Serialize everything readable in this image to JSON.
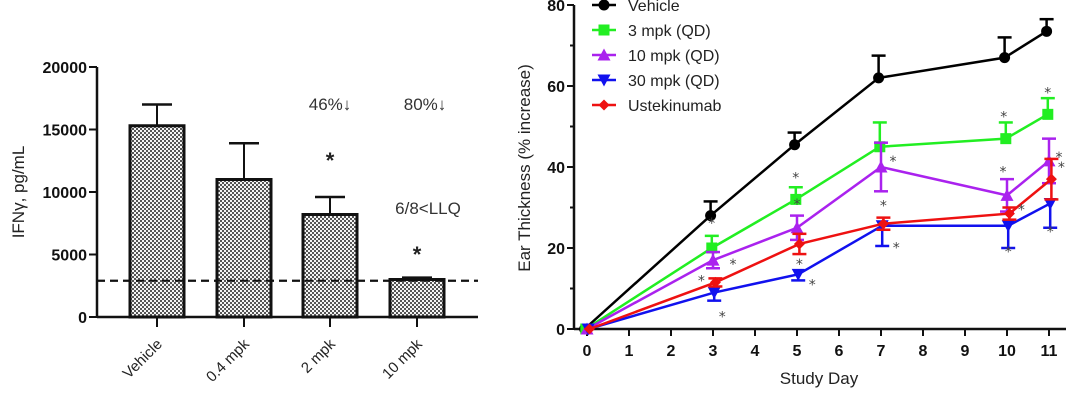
{
  "chart_data": [
    {
      "type": "bar",
      "title": "",
      "xlabel": "",
      "ylabel": "IFNγ, pg/mL",
      "ylim": [
        0,
        20000
      ],
      "yticks": [
        "0",
        "5000",
        "10000",
        "15000",
        "20000"
      ],
      "categories": [
        "Vehicle",
        "0.4 mpk",
        "2 mpk",
        "10 mpk"
      ],
      "values": [
        15300,
        11000,
        8200,
        3000
      ],
      "error_upper": [
        1700,
        2900,
        1400,
        150
      ],
      "reference_line": {
        "label": "LLQ",
        "value": 2900,
        "style": "dashed"
      },
      "significance": [
        "",
        "",
        "*",
        "*"
      ],
      "annotations": [
        {
          "text": "46%↓",
          "category": "2 mpk"
        },
        {
          "text": "80%↓",
          "category": "10 mpk"
        },
        {
          "text": "6/8<LLQ",
          "category": "10 mpk"
        }
      ],
      "fill": "crosshatch gray",
      "grid": false
    },
    {
      "type": "line",
      "title": "",
      "xlabel": "Study Day",
      "ylabel": "Ear Thickness (% increase)",
      "xlim": [
        0,
        11
      ],
      "ylim": [
        0,
        80
      ],
      "xticks": [
        "0",
        "1",
        "2",
        "3",
        "4",
        "5",
        "6",
        "7",
        "8",
        "9",
        "10",
        "11"
      ],
      "yticks": [
        "0",
        "20",
        "40",
        "60",
        "80"
      ],
      "x": [
        0,
        3,
        5,
        7,
        10,
        11
      ],
      "legend_position": "top-left",
      "series": [
        {
          "name": "Vehicle",
          "color": "#000000",
          "marker": "circle",
          "values": [
            0,
            28,
            45.5,
            62,
            67,
            73.5
          ],
          "error": [
            0,
            3.5,
            3,
            5.5,
            5,
            3
          ],
          "error_dir": "up",
          "sig": [
            false,
            false,
            false,
            false,
            false,
            false
          ]
        },
        {
          "name": "3 mpk (QD)",
          "color": "#22ee22",
          "marker": "square",
          "values": [
            0,
            20,
            32,
            45,
            47,
            53
          ],
          "error": [
            0,
            3,
            3,
            6,
            4,
            4
          ],
          "error_dir": "up",
          "sig": [
            false,
            true,
            true,
            false,
            true,
            true
          ]
        },
        {
          "name": "10 mpk (QD)",
          "color": "#aa22ee",
          "marker": "triangle-up",
          "values": [
            0,
            17,
            25,
            40,
            33,
            41.5
          ],
          "error": [
            0,
            2,
            3,
            6,
            4,
            5.5
          ],
          "error_dir": "both",
          "sig": [
            false,
            true,
            true,
            true,
            true,
            true
          ]
        },
        {
          "name": "30 mpk (QD)",
          "color": "#1111ee",
          "marker": "triangle-down",
          "values": [
            0,
            9,
            13.5,
            25.5,
            25.5,
            31
          ],
          "error": [
            0,
            2,
            1.5,
            5,
            5.5,
            6
          ],
          "error_dir": "down",
          "sig": [
            false,
            true,
            true,
            true,
            true,
            true
          ]
        },
        {
          "name": "Ustekinumab",
          "color": "#ee1111",
          "marker": "diamond",
          "values": [
            0,
            11.5,
            21,
            26,
            28.5,
            37
          ],
          "error": [
            0,
            1,
            2.5,
            1.5,
            1.5,
            5
          ],
          "error_dir": "both",
          "sig": [
            false,
            true,
            true,
            true,
            true,
            true
          ]
        }
      ],
      "grid": false
    }
  ]
}
